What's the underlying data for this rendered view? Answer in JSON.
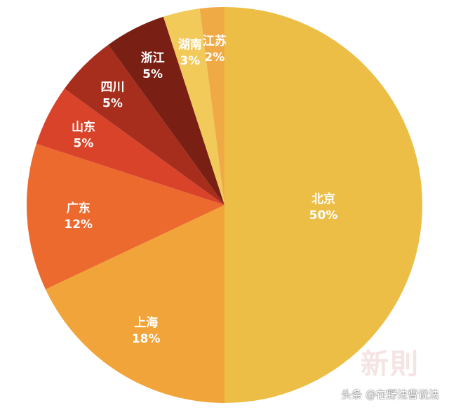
{
  "chart_data": {
    "type": "pie",
    "slices": [
      {
        "label": "北京",
        "value": 50,
        "value_label": "50%",
        "color": "#ecbe45"
      },
      {
        "label": "上海",
        "value": 18,
        "value_label": "18%",
        "color": "#f0a43a"
      },
      {
        "label": "广东",
        "value": 12,
        "value_label": "12%",
        "color": "#ec6a2e"
      },
      {
        "label": "山东",
        "value": 5,
        "value_label": "5%",
        "color": "#d9432a"
      },
      {
        "label": "四川",
        "value": 5,
        "value_label": "5%",
        "color": "#a72e1d"
      },
      {
        "label": "浙江",
        "value": 5,
        "value_label": "5%",
        "color": "#7a1f14"
      },
      {
        "label": "湖南",
        "value": 3,
        "value_label": "3%",
        "color": "#f2ca5a"
      },
      {
        "label": "江苏",
        "value": 2,
        "value_label": "2%",
        "color": "#f0aa45"
      }
    ]
  },
  "watermark": "新則",
  "credit": "头条 @在野法曹说法"
}
